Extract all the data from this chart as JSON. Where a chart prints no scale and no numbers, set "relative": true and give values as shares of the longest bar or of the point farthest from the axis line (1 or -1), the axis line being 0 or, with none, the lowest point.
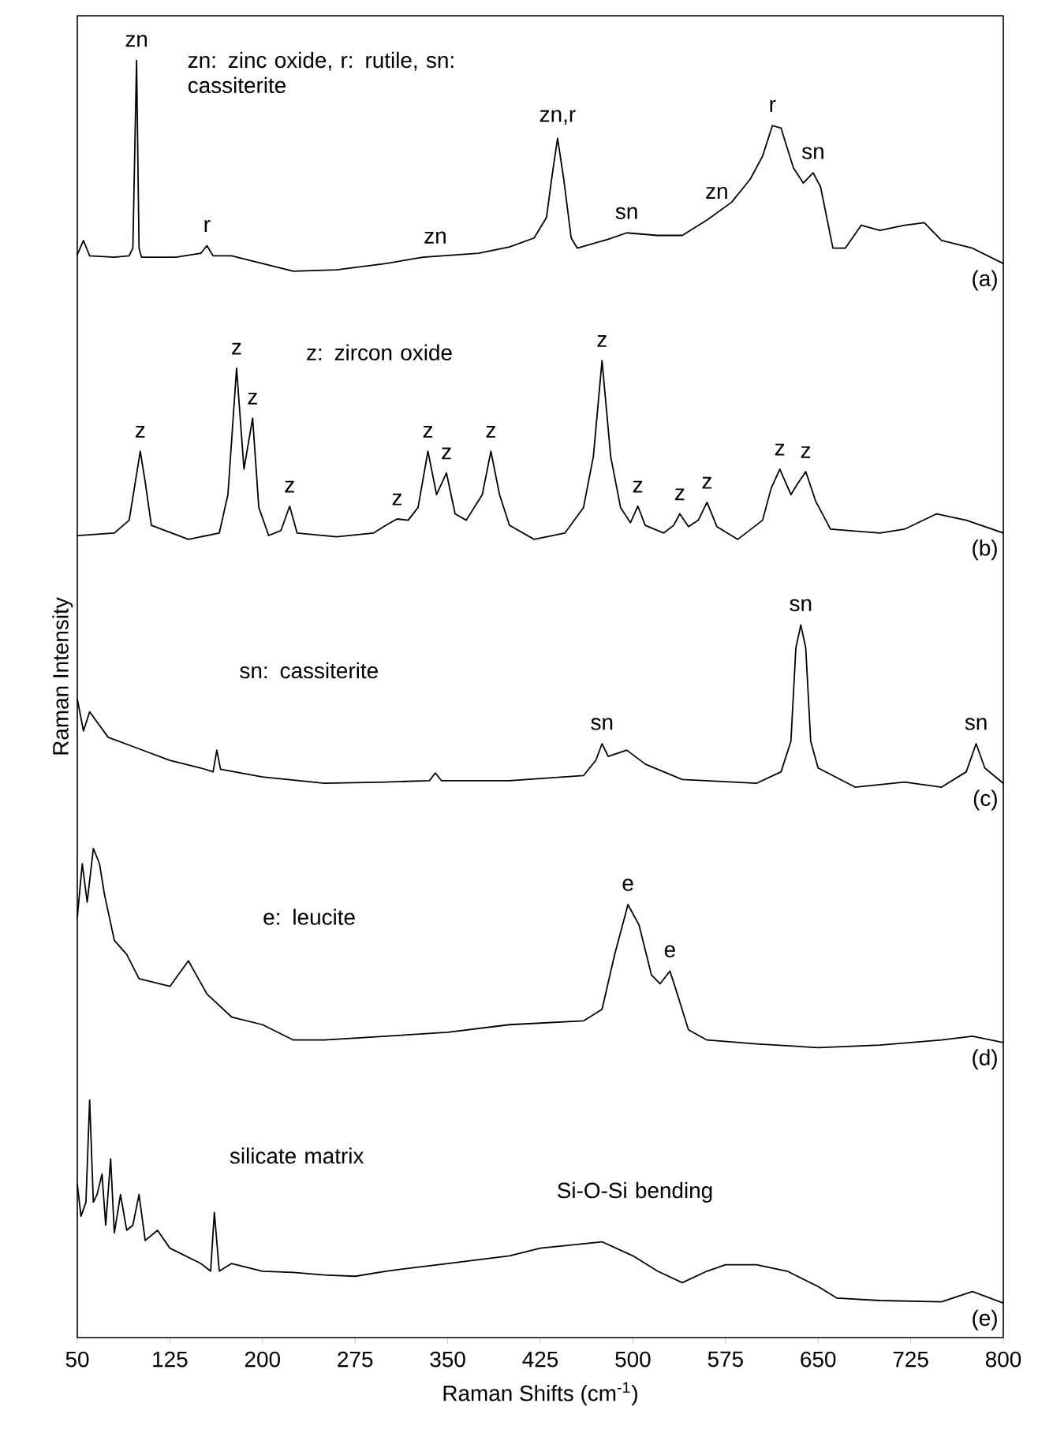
{
  "chart_data": {
    "type": "line",
    "relative": true,
    "xlabel": "Raman Shifts (cm$^{-1}$)",
    "ylabel": "Raman Intensity",
    "xlim": [
      50,
      800
    ],
    "xticks": [
      50,
      125,
      200,
      275,
      350,
      425,
      500,
      575,
      650,
      725,
      800
    ],
    "series": [
      {
        "name": "(a)",
        "color": "#000000",
        "x": [
          50,
          55,
          60,
          80,
          92,
          95,
          98,
          100,
          102,
          130,
          150,
          155,
          160,
          175,
          200,
          225,
          260,
          300,
          330,
          375,
          400,
          420,
          430,
          435,
          439,
          444,
          450,
          455,
          480,
          495,
          520,
          540,
          560,
          580,
          595,
          605,
          610,
          613,
          620,
          630,
          638,
          646,
          652,
          662,
          672,
          685,
          700,
          720,
          736,
          750,
          775,
          800
        ],
        "values": [
          0.848,
          0.859,
          0.847,
          0.846,
          0.847,
          0.853,
          1.0,
          0.853,
          0.846,
          0.846,
          0.849,
          0.855,
          0.847,
          0.847,
          0.841,
          0.835,
          0.836,
          0.841,
          0.846,
          0.849,
          0.854,
          0.861,
          0.877,
          0.913,
          0.939,
          0.907,
          0.861,
          0.853,
          0.86,
          0.865,
          0.863,
          0.863,
          0.875,
          0.889,
          0.907,
          0.925,
          0.94,
          0.949,
          0.947,
          0.916,
          0.904,
          0.912,
          0.901,
          0.853,
          0.853,
          0.871,
          0.867,
          0.871,
          0.873,
          0.859,
          0.853,
          0.841
        ]
      },
      {
        "name": "(b)",
        "color": "#000000",
        "x": [
          50,
          80,
          92,
          97,
          101,
          105,
          110,
          140,
          165,
          172,
          179,
          185,
          192,
          197,
          205,
          215,
          222,
          228,
          260,
          290,
          300,
          309,
          318,
          326,
          334,
          341,
          349,
          356,
          365,
          378,
          385,
          392,
          400,
          420,
          445,
          460,
          468,
          475,
          482,
          490,
          498,
          504,
          510,
          525,
          533,
          538,
          545,
          553,
          560,
          568,
          585,
          605,
          612,
          619,
          628,
          633,
          640,
          648,
          660,
          700,
          720,
          746,
          770,
          800
        ],
        "values": [
          0.628,
          0.63,
          0.64,
          0.67,
          0.694,
          0.67,
          0.636,
          0.625,
          0.63,
          0.66,
          0.759,
          0.68,
          0.72,
          0.65,
          0.628,
          0.632,
          0.651,
          0.63,
          0.627,
          0.63,
          0.636,
          0.641,
          0.64,
          0.65,
          0.694,
          0.66,
          0.677,
          0.645,
          0.64,
          0.66,
          0.694,
          0.66,
          0.636,
          0.625,
          0.63,
          0.65,
          0.69,
          0.765,
          0.69,
          0.65,
          0.638,
          0.651,
          0.636,
          0.63,
          0.636,
          0.645,
          0.635,
          0.64,
          0.654,
          0.635,
          0.625,
          0.64,
          0.665,
          0.68,
          0.66,
          0.668,
          0.678,
          0.655,
          0.633,
          0.63,
          0.633,
          0.645,
          0.64,
          0.63
        ]
      },
      {
        "name": "(c)",
        "color": "#000000",
        "x": [
          50,
          55,
          60,
          75,
          100,
          125,
          150,
          160,
          163,
          166,
          200,
          250,
          300,
          335,
          340,
          345,
          400,
          460,
          470,
          475,
          480,
          495,
          510,
          540,
          600,
          620,
          628,
          632,
          636,
          640,
          644,
          650,
          680,
          720,
          750,
          770,
          778,
          785,
          800
        ],
        "values": [
          0.5,
          0.475,
          0.49,
          0.47,
          0.461,
          0.452,
          0.446,
          0.443,
          0.46,
          0.445,
          0.439,
          0.434,
          0.435,
          0.436,
          0.442,
          0.436,
          0.436,
          0.44,
          0.452,
          0.465,
          0.455,
          0.46,
          0.449,
          0.437,
          0.434,
          0.443,
          0.467,
          0.54,
          0.558,
          0.54,
          0.467,
          0.446,
          0.431,
          0.435,
          0.431,
          0.443,
          0.465,
          0.446,
          0.434
        ]
      },
      {
        "name": "(d)",
        "color": "#000000",
        "x": [
          50,
          54,
          58,
          63,
          68,
          72,
          80,
          90,
          100,
          125,
          140,
          155,
          175,
          200,
          225,
          250,
          300,
          350,
          400,
          460,
          475,
          485,
          496,
          505,
          515,
          522,
          530,
          536,
          545,
          560,
          600,
          650,
          700,
          750,
          775,
          800
        ],
        "values": [
          0.329,
          0.371,
          0.341,
          0.383,
          0.371,
          0.347,
          0.311,
          0.3,
          0.281,
          0.275,
          0.295,
          0.269,
          0.251,
          0.245,
          0.233,
          0.233,
          0.236,
          0.239,
          0.245,
          0.248,
          0.257,
          0.299,
          0.339,
          0.323,
          0.284,
          0.277,
          0.287,
          0.269,
          0.241,
          0.233,
          0.23,
          0.227,
          0.229,
          0.233,
          0.236,
          0.231
        ]
      },
      {
        "name": "(e)",
        "color": "#000000",
        "x": [
          50,
          53,
          57,
          60,
          63,
          66,
          70,
          73,
          77,
          80,
          85,
          90,
          95,
          100,
          105,
          115,
          125,
          150,
          158,
          161,
          165,
          175,
          200,
          225,
          250,
          275,
          300,
          350,
          400,
          425,
          475,
          500,
          520,
          540,
          560,
          575,
          600,
          625,
          650,
          665,
          700,
          750,
          775,
          800
        ],
        "values": [
          0.12,
          0.095,
          0.106,
          0.186,
          0.106,
          0.112,
          0.128,
          0.088,
          0.14,
          0.082,
          0.112,
          0.084,
          0.088,
          0.112,
          0.076,
          0.084,
          0.07,
          0.058,
          0.052,
          0.098,
          0.052,
          0.058,
          0.052,
          0.051,
          0.049,
          0.048,
          0.052,
          0.058,
          0.064,
          0.07,
          0.075,
          0.064,
          0.052,
          0.043,
          0.052,
          0.057,
          0.057,
          0.052,
          0.04,
          0.031,
          0.029,
          0.028,
          0.036,
          0.027
        ]
      }
    ],
    "annotations": [
      "zn: zinc oxide, r: rutile, sn: cassiterite",
      "z: zircon oxide",
      "sn: cassiterite",
      "e: leucite",
      "silicate matrix",
      "Si-O-Si bending",
      {
        "text": "zn",
        "x": 98,
        "y": 1.0
      },
      {
        "text": "r",
        "x": 155,
        "y": 0.855
      },
      {
        "text": "zn",
        "x": 340,
        "y": 0.846
      },
      {
        "text": "zn,r",
        "x": 439,
        "y": 0.939
      },
      {
        "text": "sn",
        "x": 495,
        "y": 0.865
      },
      {
        "text": "zn",
        "x": 568,
        "y": 0.881
      },
      {
        "text": "r",
        "x": 613,
        "y": 0.949
      },
      {
        "text": "sn",
        "x": 646,
        "y": 0.912
      },
      {
        "text": "z",
        "x": 101,
        "y": 0.694
      },
      {
        "text": "z",
        "x": 179,
        "y": 0.759
      },
      {
        "text": "z",
        "x": 192,
        "y": 0.72
      },
      {
        "text": "z",
        "x": 222,
        "y": 0.651
      },
      {
        "text": "z",
        "x": 309,
        "y": 0.641
      },
      {
        "text": "z",
        "x": 334,
        "y": 0.694
      },
      {
        "text": "z",
        "x": 349,
        "y": 0.677
      },
      {
        "text": "z",
        "x": 385,
        "y": 0.694
      },
      {
        "text": "z",
        "x": 475,
        "y": 0.765
      },
      {
        "text": "z",
        "x": 504,
        "y": 0.651
      },
      {
        "text": "z",
        "x": 538,
        "y": 0.645
      },
      {
        "text": "z",
        "x": 560,
        "y": 0.654
      },
      {
        "text": "z",
        "x": 619,
        "y": 0.68
      },
      {
        "text": "z",
        "x": 640,
        "y": 0.678
      },
      {
        "text": "sn",
        "x": 475,
        "y": 0.465
      },
      {
        "text": "sn",
        "x": 636,
        "y": 0.558
      },
      {
        "text": "sn",
        "x": 778,
        "y": 0.465
      },
      {
        "text": "e",
        "x": 496,
        "y": 0.339
      },
      {
        "text": "e",
        "x": 530,
        "y": 0.287
      }
    ]
  }
}
